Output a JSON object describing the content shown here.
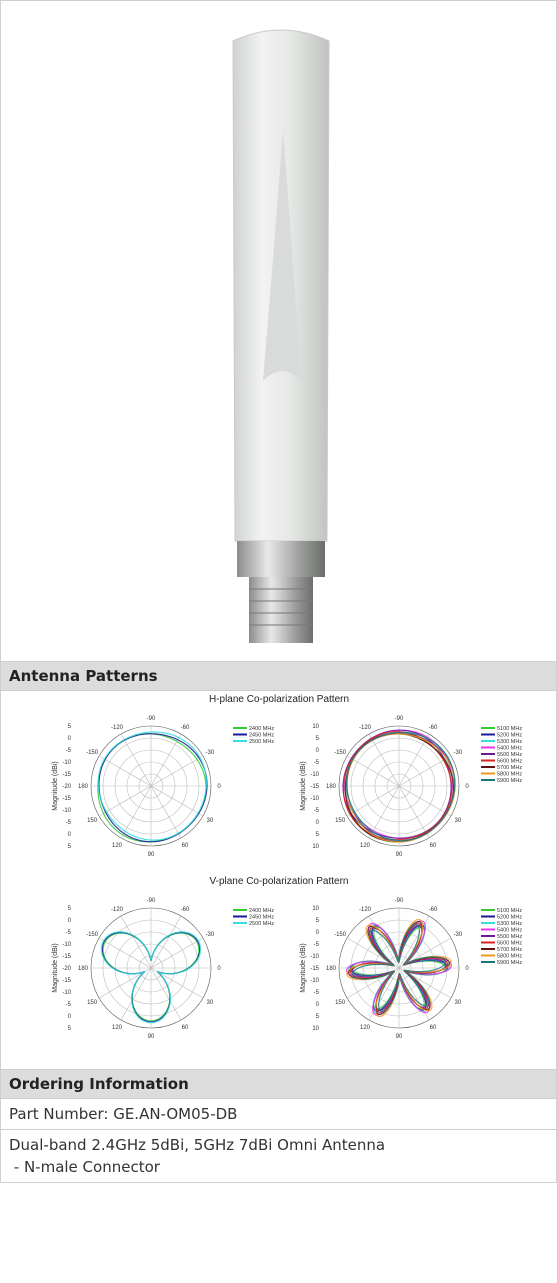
{
  "sections": {
    "patterns": "Antenna Patterns",
    "ordering": "Ordering Information"
  },
  "patterns": {
    "titles": [
      "H-plane Co-polarization Pattern",
      "V-plane Co-polarization Pattern"
    ],
    "y_label": "Magnitude (dBi)",
    "legend_24": [
      {
        "name": "2400 MHz",
        "color": "#33cc33"
      },
      {
        "name": "2450 MHz",
        "color": "#1a1a99"
      },
      {
        "name": "2500 MHz",
        "color": "#33dddd"
      }
    ],
    "legend_5": [
      {
        "name": "5100 MHz",
        "color": "#33cc33"
      },
      {
        "name": "5200 MHz",
        "color": "#1a1a99"
      },
      {
        "name": "5300 MHz",
        "color": "#33dddd"
      },
      {
        "name": "5400 MHz",
        "color": "#ee33ee"
      },
      {
        "name": "5500 MHz",
        "color": "#6a1a9a"
      },
      {
        "name": "5600 MHz",
        "color": "#dd2222"
      },
      {
        "name": "5700 MHz",
        "color": "#661111"
      },
      {
        "name": "5800 MHz",
        "color": "#ee9922"
      },
      {
        "name": "5900 MHz",
        "color": "#1a7a7a"
      }
    ],
    "angle_labels": [
      "-90",
      "-60",
      "-30",
      "0",
      "30",
      "60",
      "90",
      "120",
      "150",
      "180",
      "-150",
      "-120"
    ],
    "radial_labels_24": [
      "5",
      "0",
      "-5",
      "-10",
      "-15",
      "-20",
      "-15",
      "-10",
      "-5",
      "0",
      "5"
    ],
    "radial_labels_5": [
      "10",
      "5",
      "0",
      "-5",
      "-10",
      "-15",
      "-10",
      "-5",
      "0",
      "5",
      "10"
    ]
  },
  "ordering": {
    "part_number": "Part Number: GE.AN-OM05-DB",
    "description": "Dual-band 2.4GHz 5dBi, 5GHz 7dBi Omni Antenna",
    "description_2": " - N-male Connector"
  }
}
